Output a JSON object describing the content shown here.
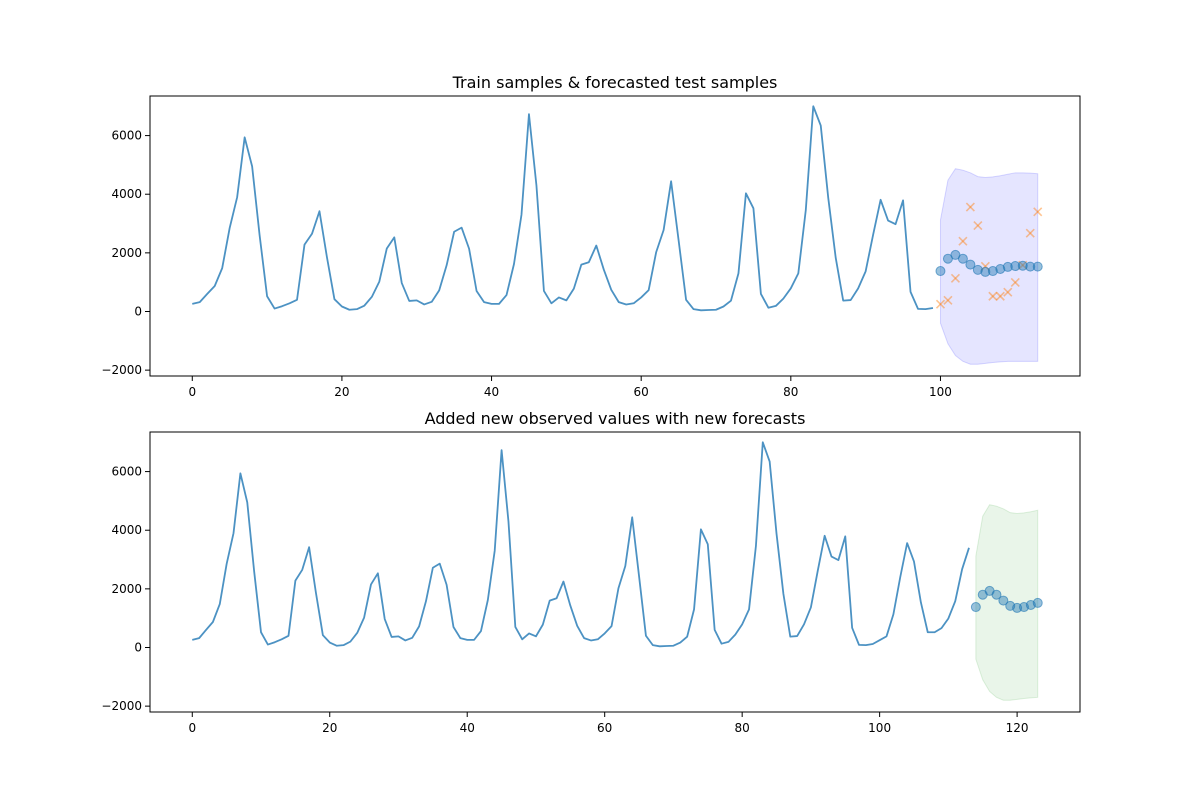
{
  "chart_data": [
    {
      "type": "line",
      "title": "Train samples & forecasted test samples",
      "xlabel": "",
      "ylabel": "",
      "xlim": [
        -5.65,
        118.65
      ],
      "ylim": [
        -2200,
        7350
      ],
      "xticks": [
        0,
        20,
        40,
        60,
        80,
        100
      ],
      "yticks": [
        -2000,
        0,
        2000,
        4000,
        6000
      ],
      "grid": false,
      "legend": "none",
      "colors": {
        "line": "#1f77b4",
        "forecast": "#1f77b4",
        "observed": "#ff7f0e",
        "band": "#0000ff"
      },
      "line": {
        "x_start": 0,
        "values": [
          262,
          320,
          600,
          870,
          1480,
          2850,
          3900,
          5940,
          4950,
          2600,
          520,
          100,
          180,
          280,
          400,
          2280,
          2650,
          3420,
          1850,
          420,
          170,
          60,
          80,
          200,
          500,
          1020,
          2150,
          2530,
          970,
          360,
          380,
          240,
          330,
          720,
          1580,
          2720,
          2860,
          2140,
          700,
          320,
          260,
          260,
          560,
          1620,
          3300,
          6730,
          4300,
          700,
          280,
          480,
          380,
          780,
          1600,
          1680,
          2250,
          1430,
          740,
          320,
          240,
          280,
          480,
          730,
          2020,
          2780,
          4440,
          2430,
          400,
          80,
          40,
          50,
          60,
          170,
          370,
          1300,
          4030,
          3520,
          600,
          130,
          190,
          440,
          790,
          1300,
          3460,
          7000,
          6340,
          3880,
          1830,
          370,
          390,
          790,
          1370,
          2620,
          3810,
          3100,
          2980,
          3790,
          670,
          90,
          80,
          120
        ]
      },
      "forecast": {
        "x": [
          100,
          101,
          102,
          103,
          104,
          105,
          106,
          107,
          108,
          109,
          110,
          111,
          112,
          113
        ],
        "mean": [
          1380,
          1800,
          1930,
          1800,
          1600,
          1420,
          1350,
          1380,
          1450,
          1520,
          1550,
          1560,
          1530,
          1530
        ],
        "lower": [
          -400,
          -1100,
          -1500,
          -1700,
          -1800,
          -1800,
          -1770,
          -1740,
          -1720,
          -1700,
          -1700,
          -1700,
          -1700,
          -1700
        ],
        "upper": [
          3120,
          4480,
          4870,
          4820,
          4730,
          4600,
          4570,
          4590,
          4630,
          4680,
          4730,
          4730,
          4720,
          4700
        ]
      },
      "observed": {
        "x": [
          100,
          101,
          102,
          103,
          104,
          105,
          106,
          107,
          108,
          109,
          110,
          111,
          112,
          113
        ],
        "values": [
          250,
          380,
          1130,
          2400,
          3560,
          2930,
          1540,
          520,
          520,
          660,
          990,
          1580,
          2670,
          3400
        ]
      }
    },
    {
      "type": "line",
      "title": "Added new observed values with new forecasts",
      "xlabel": "",
      "ylabel": "",
      "xlim": [
        -6.15,
        129.15
      ],
      "ylim": [
        -2200,
        7350
      ],
      "xticks": [
        0,
        20,
        40,
        60,
        80,
        100,
        120
      ],
      "yticks": [
        -2000,
        0,
        2000,
        4000,
        6000
      ],
      "grid": false,
      "legend": "none",
      "colors": {
        "line": "#1f77b4",
        "forecast": "#1f77b4",
        "band": "#2ca02c"
      },
      "line": {
        "x_start": 0,
        "values": [
          262,
          320,
          600,
          870,
          1480,
          2850,
          3900,
          5940,
          4950,
          2600,
          520,
          100,
          180,
          280,
          400,
          2280,
          2650,
          3420,
          1850,
          420,
          170,
          60,
          80,
          200,
          500,
          1020,
          2150,
          2530,
          970,
          360,
          380,
          240,
          330,
          720,
          1580,
          2720,
          2860,
          2140,
          700,
          320,
          260,
          260,
          560,
          1620,
          3300,
          6730,
          4300,
          700,
          280,
          480,
          380,
          780,
          1600,
          1680,
          2250,
          1430,
          740,
          320,
          240,
          280,
          480,
          730,
          2020,
          2780,
          4440,
          2430,
          400,
          80,
          40,
          50,
          60,
          170,
          370,
          1300,
          4030,
          3520,
          600,
          130,
          190,
          440,
          790,
          1300,
          3460,
          7000,
          6340,
          3880,
          1830,
          370,
          390,
          790,
          1370,
          2620,
          3810,
          3100,
          2980,
          3790,
          670,
          90,
          80,
          120,
          250,
          380,
          1130,
          2400,
          3560,
          2930,
          1540,
          520,
          520,
          660,
          990,
          1580,
          2670,
          3400
        ]
      },
      "forecast": {
        "x": [
          114,
          115,
          116,
          117,
          118,
          119,
          120,
          121,
          122,
          123
        ],
        "mean": [
          1380,
          1800,
          1930,
          1800,
          1600,
          1420,
          1350,
          1380,
          1450,
          1520
        ],
        "lower": [
          -400,
          -1100,
          -1500,
          -1700,
          -1800,
          -1800,
          -1770,
          -1740,
          -1720,
          -1700
        ],
        "upper": [
          3120,
          4480,
          4870,
          4820,
          4730,
          4600,
          4570,
          4590,
          4630,
          4680
        ]
      }
    }
  ]
}
